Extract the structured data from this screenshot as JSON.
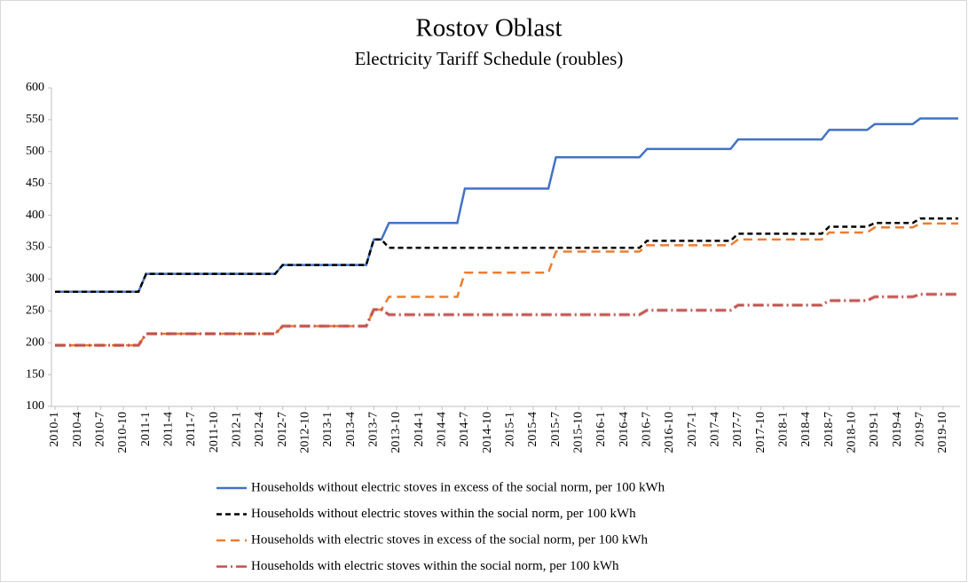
{
  "chart_data": {
    "type": "line",
    "title": "Rostov Oblast",
    "subtitle": "Electricity Tariff Schedule (roubles)",
    "categories": [
      "2010-1",
      null,
      null,
      "2010-4",
      null,
      null,
      "2010-7",
      null,
      null,
      "2010-10",
      null,
      null,
      "2011-1",
      null,
      null,
      "2011-4",
      null,
      null,
      "2011-7",
      null,
      null,
      "2011-10",
      null,
      null,
      "2012-1",
      null,
      null,
      "2012-4",
      null,
      null,
      "2012-7",
      null,
      null,
      "2012-10",
      null,
      null,
      "2013-1",
      null,
      null,
      "2013-4",
      null,
      null,
      "2013-7",
      null,
      null,
      "2013-10",
      null,
      null,
      "2014-1",
      null,
      null,
      "2014-4",
      null,
      null,
      "2014-7",
      null,
      null,
      "2014-10",
      null,
      null,
      "2015-1",
      null,
      null,
      "2015-4",
      null,
      null,
      "2015-7",
      null,
      null,
      "2015-10",
      null,
      null,
      "2016-1",
      null,
      null,
      "2016-4",
      null,
      null,
      "2016-7",
      null,
      null,
      "2016-10",
      null,
      null,
      "2017-1",
      null,
      null,
      "2017-4",
      null,
      null,
      "2017-7",
      null,
      null,
      "2017-10",
      null,
      null,
      "2018-1",
      null,
      null,
      "2018-4",
      null,
      null,
      "2018-7",
      null,
      null,
      "2018-10",
      null,
      null,
      "2019-1",
      null,
      null,
      "2019-4",
      null,
      null,
      "2019-7",
      null,
      null,
      "2019-10",
      null,
      null
    ],
    "series": [
      {
        "name": "Households without electric stoves in excess of the social norm, per 100 kWh",
        "color": "#4472c4",
        "style": "solid",
        "values": [
          280,
          280,
          280,
          280,
          280,
          280,
          280,
          280,
          280,
          280,
          280,
          280,
          308,
          308,
          308,
          308,
          308,
          308,
          308,
          308,
          308,
          308,
          308,
          308,
          308,
          308,
          308,
          308,
          308,
          308,
          322,
          322,
          322,
          322,
          322,
          322,
          322,
          322,
          322,
          322,
          322,
          322,
          362,
          362,
          388,
          388,
          388,
          388,
          388,
          388,
          388,
          388,
          388,
          388,
          442,
          442,
          442,
          442,
          442,
          442,
          442,
          442,
          442,
          442,
          442,
          442,
          491,
          491,
          491,
          491,
          491,
          491,
          491,
          491,
          491,
          491,
          491,
          491,
          504,
          504,
          504,
          504,
          504,
          504,
          504,
          504,
          504,
          504,
          504,
          504,
          519,
          519,
          519,
          519,
          519,
          519,
          519,
          519,
          519,
          519,
          519,
          519,
          534,
          534,
          534,
          534,
          534,
          534,
          543,
          543,
          543,
          543,
          543,
          543,
          552,
          552,
          552,
          552,
          552,
          552
        ]
      },
      {
        "name": "Households  without electric stoves within the social norm, per 100 kWh",
        "color": "#000000",
        "style": "dashed",
        "values": [
          280,
          280,
          280,
          280,
          280,
          280,
          280,
          280,
          280,
          280,
          280,
          280,
          308,
          308,
          308,
          308,
          308,
          308,
          308,
          308,
          308,
          308,
          308,
          308,
          308,
          308,
          308,
          308,
          308,
          308,
          322,
          322,
          322,
          322,
          322,
          322,
          322,
          322,
          322,
          322,
          322,
          322,
          362,
          362,
          349,
          349,
          349,
          349,
          349,
          349,
          349,
          349,
          349,
          349,
          349,
          349,
          349,
          349,
          349,
          349,
          349,
          349,
          349,
          349,
          349,
          349,
          349,
          349,
          349,
          349,
          349,
          349,
          349,
          349,
          349,
          349,
          349,
          349,
          360,
          360,
          360,
          360,
          360,
          360,
          360,
          360,
          360,
          360,
          360,
          360,
          371,
          371,
          371,
          371,
          371,
          371,
          371,
          371,
          371,
          371,
          371,
          371,
          382,
          382,
          382,
          382,
          382,
          382,
          388,
          388,
          388,
          388,
          388,
          388,
          395,
          395,
          395,
          395,
          395,
          395
        ]
      },
      {
        "name": "Households with electric stoves in excess of the social norm, per 100 kWh",
        "color": "#ed7d31",
        "style": "longdash",
        "values": [
          196,
          196,
          196,
          196,
          196,
          196,
          196,
          196,
          196,
          196,
          196,
          196,
          214,
          214,
          214,
          214,
          214,
          214,
          214,
          214,
          214,
          214,
          214,
          214,
          214,
          214,
          214,
          214,
          214,
          214,
          226,
          226,
          226,
          226,
          226,
          226,
          226,
          226,
          226,
          226,
          226,
          226,
          252,
          252,
          272,
          272,
          272,
          272,
          272,
          272,
          272,
          272,
          272,
          272,
          310,
          310,
          310,
          310,
          310,
          310,
          310,
          310,
          310,
          310,
          310,
          310,
          343,
          343,
          343,
          343,
          343,
          343,
          343,
          343,
          343,
          343,
          343,
          343,
          353,
          353,
          353,
          353,
          353,
          353,
          353,
          353,
          353,
          353,
          353,
          353,
          362,
          362,
          362,
          362,
          362,
          362,
          362,
          362,
          362,
          362,
          362,
          362,
          373,
          373,
          373,
          373,
          373,
          373,
          381,
          381,
          381,
          381,
          381,
          381,
          387,
          387,
          387,
          387,
          387,
          387
        ]
      },
      {
        "name": "Households  with electric stoves within the social norm, per 100 kWh",
        "color": "#c0504d",
        "style": "dashdot",
        "values": [
          196,
          196,
          196,
          196,
          196,
          196,
          196,
          196,
          196,
          196,
          196,
          196,
          214,
          214,
          214,
          214,
          214,
          214,
          214,
          214,
          214,
          214,
          214,
          214,
          214,
          214,
          214,
          214,
          214,
          214,
          226,
          226,
          226,
          226,
          226,
          226,
          226,
          226,
          226,
          226,
          226,
          226,
          252,
          252,
          244,
          244,
          244,
          244,
          244,
          244,
          244,
          244,
          244,
          244,
          244,
          244,
          244,
          244,
          244,
          244,
          244,
          244,
          244,
          244,
          244,
          244,
          244,
          244,
          244,
          244,
          244,
          244,
          244,
          244,
          244,
          244,
          244,
          244,
          251,
          251,
          251,
          251,
          251,
          251,
          251,
          251,
          251,
          251,
          251,
          251,
          259,
          259,
          259,
          259,
          259,
          259,
          259,
          259,
          259,
          259,
          259,
          259,
          266,
          266,
          266,
          266,
          266,
          266,
          272,
          272,
          272,
          272,
          272,
          272,
          276,
          276,
          276,
          276,
          276,
          276
        ]
      }
    ],
    "ylim": [
      100,
      600
    ],
    "yticks": [
      100,
      150,
      200,
      250,
      300,
      350,
      400,
      450,
      500,
      550,
      600
    ],
    "grid": false,
    "legend": "bottom"
  }
}
